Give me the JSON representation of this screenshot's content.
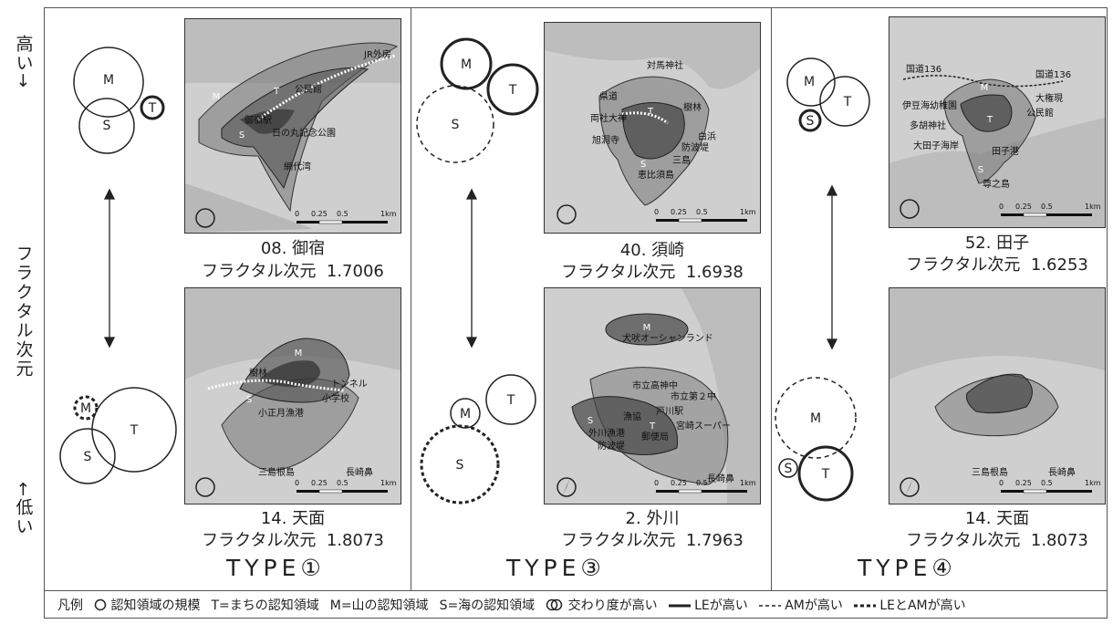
{
  "axis": {
    "high": "高い→",
    "title": "フラクタル次元",
    "low": "←低い"
  },
  "columns": [
    {
      "type_label": "TYPE①",
      "top": {
        "name": "08. 御宿",
        "dim_label": "フラクタル次元",
        "dim_value": "1.7006",
        "labels": [
          "公民館",
          "日の丸記念公園",
          "網代湾",
          "御宿駅",
          "JR外房"
        ]
      },
      "bottom": {
        "name": "14. 天面",
        "dim_label": "フラクタル次元",
        "dim_value": "1.8073",
        "labels": [
          "樹林",
          "トンネル",
          "小学校",
          "小正月漁港",
          "三島根島",
          "長崎鼻"
        ]
      }
    },
    {
      "type_label": "TYPE③",
      "top": {
        "name": "40. 須崎",
        "dim_label": "フラクタル次元",
        "dim_value": "1.6938",
        "labels": [
          "対馬神社",
          "樹林",
          "県道",
          "両社大神",
          "旭洞寺",
          "白浜",
          "防波堤",
          "三島",
          "恵比須島"
        ]
      },
      "bottom": {
        "name": "2. 外川",
        "dim_label": "フラクタル次元",
        "dim_value": "1.7963",
        "labels": [
          "犬吠オーシャンランド",
          "市立高神中",
          "市立第２中",
          "漁協",
          "外川漁港",
          "防波堤",
          "郵便局",
          "宮崎スーパー",
          "戸川駅",
          "長崎鼻"
        ]
      }
    },
    {
      "type_label": "TYPE④",
      "top": {
        "name": "52. 田子",
        "dim_label": "フラクタル次元",
        "dim_value": "1.6253",
        "labels": [
          "国道136",
          "国道136",
          "伊豆海幼稚園",
          "大権現",
          "多胡神社",
          "公民館",
          "大田子海岸",
          "田子港",
          "尊之島"
        ]
      },
      "bottom": {
        "name": "14. 天面",
        "dim_label": "フラクタル次元",
        "dim_value": "1.8073",
        "labels": [
          "三島根島",
          "長崎鼻"
        ]
      }
    }
  ],
  "circle_letters": {
    "m": "M",
    "t": "T",
    "s": "S"
  },
  "scalebar": {
    "t0": "0",
    "t1": "0.25",
    "t2": "0.5",
    "t3": "1km"
  },
  "legend": {
    "title": "凡例",
    "scale": "認知領域の規模",
    "town": "T=まちの認知領域",
    "mountain": "M=山の認知領域",
    "sea": "S=海の認知領域",
    "overlap": "交わり度が高い",
    "le": "LEが高い",
    "am": "AMが高い",
    "both": "LEとAMが高い"
  },
  "colors": {
    "border": "#555555",
    "map_bg": "#cfcfcf",
    "region": "#6e6e6e"
  }
}
